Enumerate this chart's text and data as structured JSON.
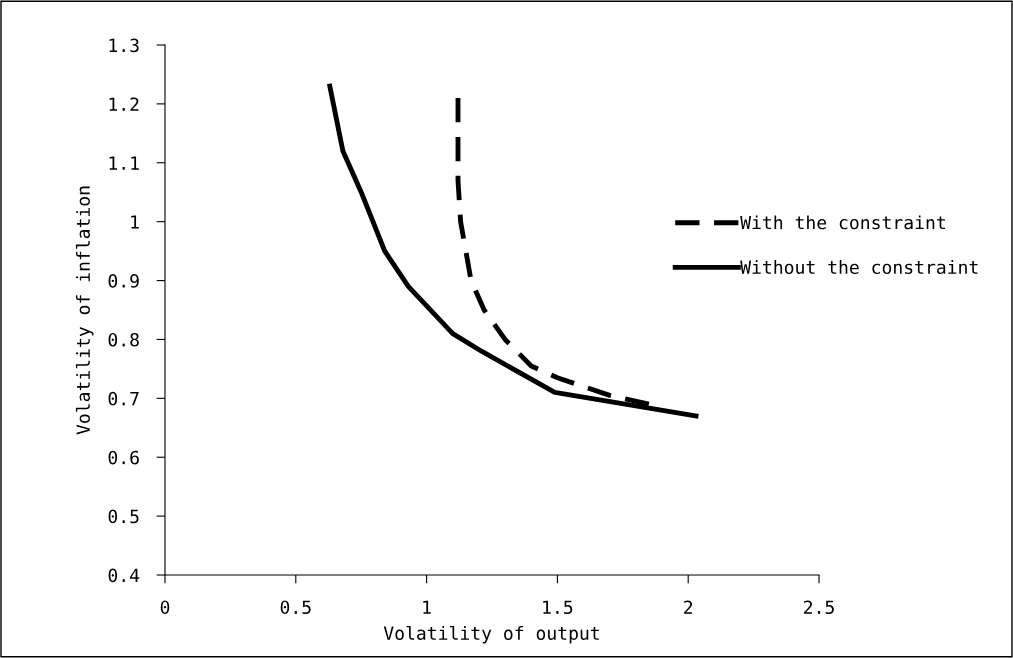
{
  "chart_data": {
    "type": "line",
    "xlabel": "Volatility of output",
    "ylabel": "Volatility of inflation",
    "xlim": [
      0,
      2.5
    ],
    "xticks": [
      0,
      0.5,
      1,
      1.5,
      2,
      2.5
    ],
    "ylim": [
      0.4,
      1.3
    ],
    "yticks": [
      0.4,
      0.5,
      0.6,
      0.7,
      0.8,
      0.9,
      1,
      1.1,
      1.2,
      1.3
    ],
    "grid": false,
    "legend": "right",
    "marker": "none",
    "series": [
      {
        "name": "With the constraint",
        "color": "#000000",
        "line_style": "dashed",
        "x": [
          1.12,
          1.12,
          1.13,
          1.17,
          1.22,
          1.3,
          1.4,
          1.5,
          1.7,
          1.9
        ],
        "values": [
          1.21,
          1.07,
          1.0,
          0.9,
          0.85,
          0.8,
          0.755,
          0.735,
          0.705,
          0.685
        ]
      },
      {
        "name": "Without the constraint",
        "color": "#000000",
        "line_style": "solid",
        "x": [
          0.63,
          0.68,
          0.75,
          0.84,
          0.93,
          1.1,
          1.21,
          1.49,
          2.03
        ],
        "values": [
          1.23,
          1.12,
          1.05,
          0.95,
          0.89,
          0.81,
          0.78,
          0.71,
          0.67
        ]
      }
    ]
  }
}
